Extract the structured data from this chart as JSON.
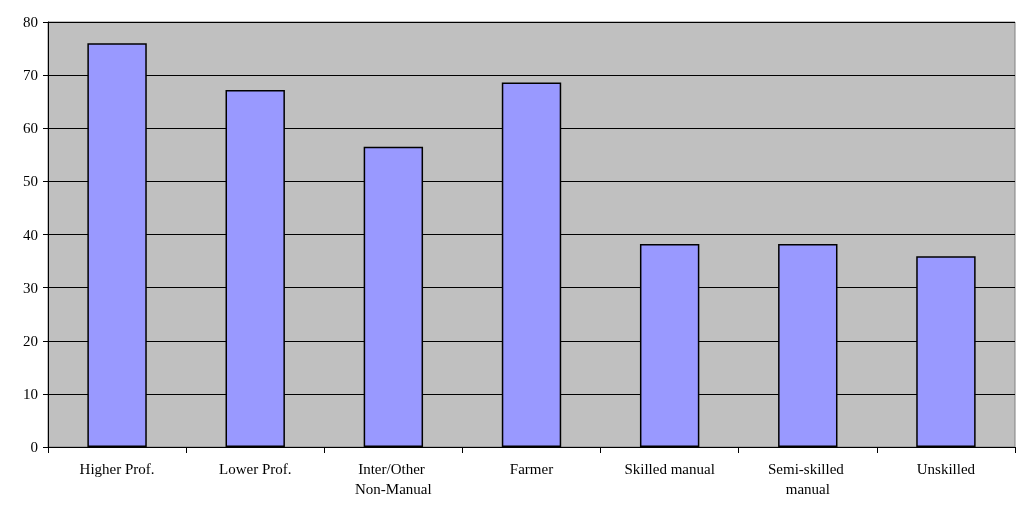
{
  "chart_data": {
    "type": "bar",
    "categories": [
      "Higher Prof.",
      "Lower Prof.",
      "Inter/Other Non-Manual",
      "Farmer",
      "Skilled manual",
      "Semi-skilled manual",
      "Unskilled"
    ],
    "values": [
      76.0,
      67.2,
      56.5,
      68.6,
      38.2,
      38.2,
      35.9
    ],
    "color": "#9999ff",
    "ylim": [
      0,
      80
    ],
    "yticks": [
      0,
      10,
      20,
      30,
      40,
      50,
      60,
      70,
      80
    ],
    "grid": "y"
  }
}
